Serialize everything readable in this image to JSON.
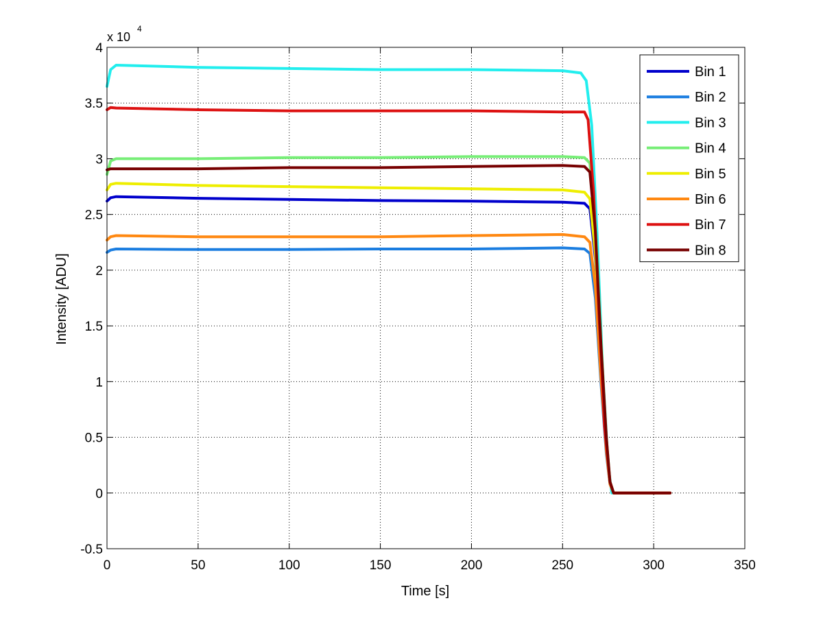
{
  "chart_data": {
    "type": "line",
    "title": "",
    "xlabel": "Time [s]",
    "ylabel": "Intensity [ADU]",
    "y_exponent_base": "x 10",
    "y_exponent_power": "4",
    "xlim": [
      0,
      350
    ],
    "ylim": [
      -0.5,
      4
    ],
    "xticks": [
      0,
      50,
      100,
      150,
      200,
      250,
      300,
      350
    ],
    "yticks": [
      -0.5,
      0,
      0.5,
      1,
      1.5,
      2,
      2.5,
      3,
      3.5,
      4
    ],
    "xtick_labels": [
      "0",
      "50",
      "100",
      "150",
      "200",
      "250",
      "300",
      "350"
    ],
    "ytick_labels": [
      "-0.5",
      "0",
      "0.5",
      "1",
      "1.5",
      "2",
      "2.5",
      "3",
      "3.5",
      "4"
    ],
    "grid": true,
    "legend_position": "top-right",
    "series": [
      {
        "name": "Bin 1",
        "color": "#0000cc",
        "x": [
          0,
          2,
          5,
          50,
          100,
          150,
          200,
          250,
          262,
          265,
          268,
          271,
          274,
          276,
          278,
          309
        ],
        "y": [
          2.62,
          2.65,
          2.66,
          2.645,
          2.635,
          2.625,
          2.62,
          2.61,
          2.6,
          2.55,
          2.1,
          1.2,
          0.45,
          0.1,
          0.0,
          0.0
        ]
      },
      {
        "name": "Bin 2",
        "color": "#1a7de0",
        "x": [
          0,
          2,
          5,
          50,
          100,
          150,
          200,
          250,
          262,
          265,
          268,
          271,
          274,
          276,
          278,
          309
        ],
        "y": [
          2.16,
          2.18,
          2.19,
          2.185,
          2.185,
          2.19,
          2.19,
          2.2,
          2.19,
          2.15,
          1.75,
          1.0,
          0.35,
          0.08,
          0.0,
          0.0
        ]
      },
      {
        "name": "Bin 3",
        "color": "#22eeee",
        "x": [
          0,
          2,
          5,
          50,
          100,
          150,
          200,
          250,
          260,
          263,
          266,
          269,
          272,
          275,
          277,
          309
        ],
        "y": [
          3.65,
          3.8,
          3.84,
          3.82,
          3.81,
          3.8,
          3.8,
          3.79,
          3.77,
          3.7,
          3.3,
          2.3,
          1.1,
          0.25,
          0.0,
          0.0
        ]
      },
      {
        "name": "Bin 4",
        "color": "#77ee77",
        "x": [
          0,
          2,
          5,
          50,
          100,
          150,
          200,
          250,
          262,
          265,
          268,
          271,
          274,
          276,
          278,
          309
        ],
        "y": [
          2.86,
          2.98,
          3.0,
          3.0,
          3.01,
          3.01,
          3.02,
          3.02,
          3.01,
          2.96,
          2.4,
          1.4,
          0.5,
          0.1,
          0.0,
          0.0
        ]
      },
      {
        "name": "Bin 5",
        "color": "#eeee00",
        "x": [
          0,
          2,
          5,
          50,
          100,
          150,
          200,
          250,
          262,
          265,
          268,
          271,
          274,
          276,
          278,
          309
        ],
        "y": [
          2.72,
          2.77,
          2.78,
          2.76,
          2.75,
          2.74,
          2.73,
          2.72,
          2.7,
          2.64,
          2.15,
          1.25,
          0.45,
          0.1,
          0.0,
          0.0
        ]
      },
      {
        "name": "Bin 6",
        "color": "#ff8811",
        "x": [
          0,
          2,
          5,
          50,
          100,
          150,
          200,
          250,
          262,
          265,
          268,
          271,
          274,
          276,
          278,
          309
        ],
        "y": [
          2.27,
          2.3,
          2.31,
          2.3,
          2.3,
          2.3,
          2.31,
          2.32,
          2.3,
          2.25,
          1.85,
          1.05,
          0.38,
          0.08,
          0.0,
          0.0
        ]
      },
      {
        "name": "Bin 7",
        "color": "#dd1111",
        "x": [
          0,
          2,
          5,
          50,
          100,
          150,
          200,
          250,
          262,
          264,
          267,
          270,
          273,
          276,
          278,
          309
        ],
        "y": [
          3.44,
          3.46,
          3.455,
          3.44,
          3.43,
          3.43,
          3.43,
          3.42,
          3.42,
          3.35,
          2.7,
          1.6,
          0.6,
          0.1,
          0.0,
          0.0
        ]
      },
      {
        "name": "Bin 8",
        "color": "#770000",
        "x": [
          0,
          2,
          5,
          50,
          100,
          150,
          200,
          250,
          262,
          265,
          268,
          271,
          274,
          276,
          278,
          309
        ],
        "y": [
          2.9,
          2.91,
          2.91,
          2.91,
          2.92,
          2.92,
          2.93,
          2.94,
          2.93,
          2.88,
          2.35,
          1.35,
          0.5,
          0.1,
          0.0,
          0.0
        ]
      }
    ]
  }
}
